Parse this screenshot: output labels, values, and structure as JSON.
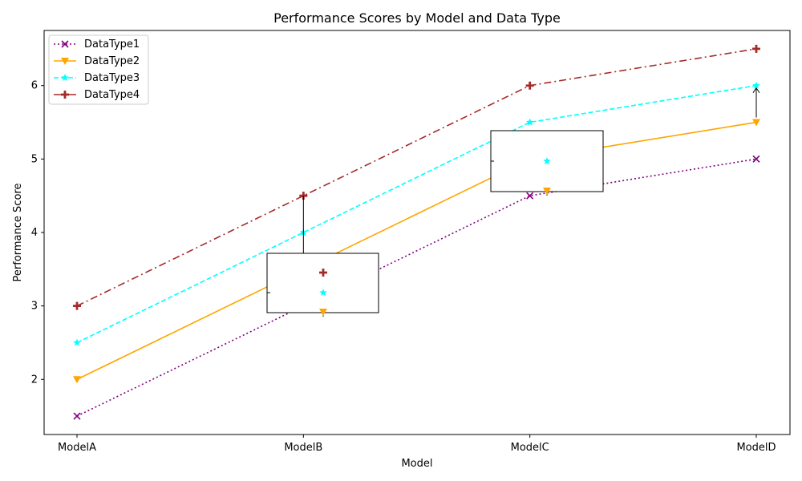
{
  "chart_data": {
    "type": "line",
    "title": "Performance Scores by Model and Data Type",
    "xlabel": "Model",
    "ylabel": "Performance Score",
    "categories": [
      "ModelA",
      "ModelB",
      "ModelC",
      "ModelD"
    ],
    "ylim": [
      1.25,
      6.75
    ],
    "yticks": [
      2,
      3,
      4,
      5,
      6
    ],
    "grid": false,
    "legend_position": "upper-left",
    "series": [
      {
        "name": "DataType1",
        "values": [
          1.5,
          3.0,
          4.5,
          5.0
        ],
        "color": "#800080",
        "linestyle": "dotted",
        "marker": "x"
      },
      {
        "name": "DataType2",
        "values": [
          2.0,
          3.5,
          5.0,
          5.5
        ],
        "color": "#FFA500",
        "linestyle": "solid",
        "marker": "triangle-down"
      },
      {
        "name": "DataType3",
        "values": [
          2.5,
          4.0,
          5.5,
          6.0
        ],
        "color": "#00FFFF",
        "linestyle": "dashed",
        "marker": "star"
      },
      {
        "name": "DataType4",
        "values": [
          3.0,
          4.5,
          6.0,
          6.5
        ],
        "color": "#A52A2A",
        "linestyle": "dashdot",
        "marker": "plus"
      }
    ],
    "annotations": [
      {
        "category": "ModelB",
        "series": [
          "DataType4",
          "DataType3",
          "DataType2"
        ],
        "type": "boxed-callout"
      },
      {
        "category": "ModelC",
        "series": [
          "DataType3",
          "DataType2"
        ],
        "type": "boxed-callout"
      },
      {
        "category": "ModelD",
        "from_series": "DataType2",
        "to_series": "DataType3",
        "type": "arrow"
      }
    ]
  }
}
